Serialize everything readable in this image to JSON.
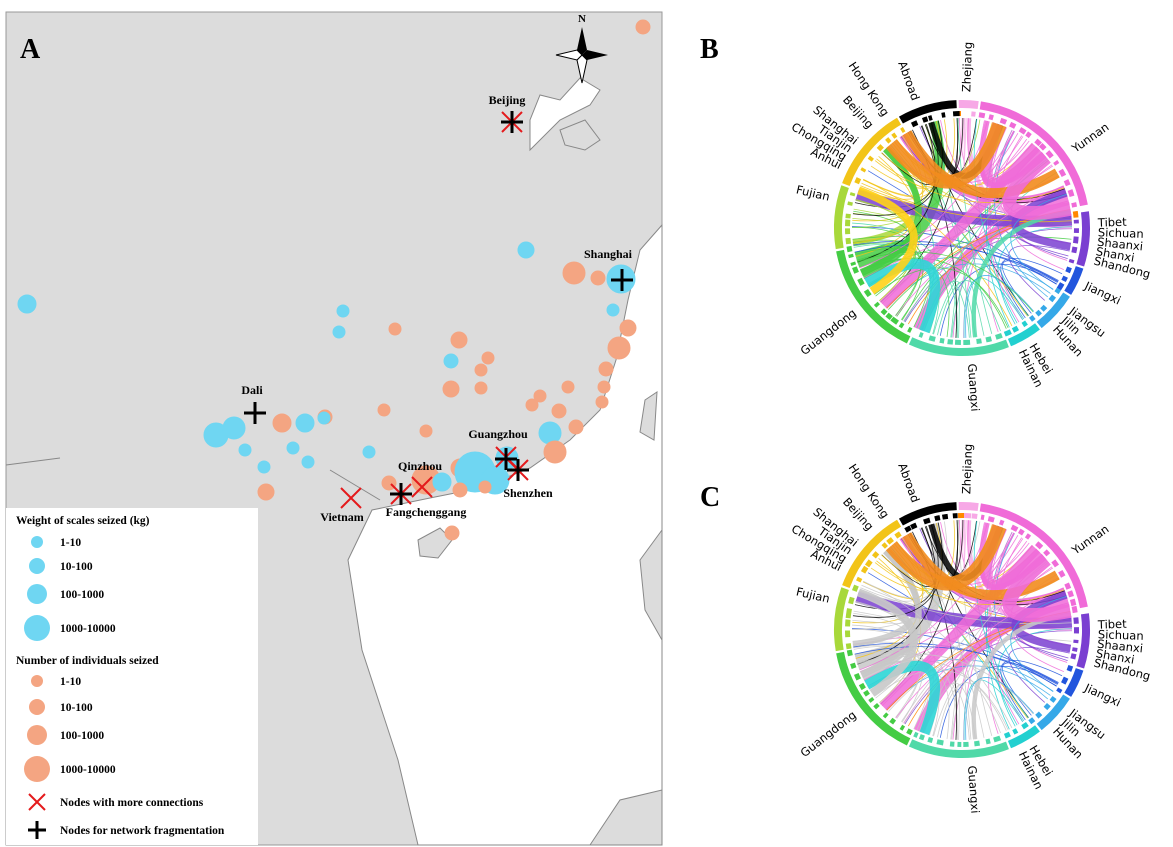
{
  "panels": {
    "a": "A",
    "b": "B",
    "c": "C"
  },
  "map": {
    "north": "N",
    "places": [
      "Beijing",
      "Shanghai",
      "Dali",
      "Guangzhou",
      "Qinzhou",
      "Shenzhen",
      "Vietnam",
      "Fangchenggang"
    ]
  },
  "legend": {
    "weight": {
      "title": "Weight of scales seized (kg)",
      "items": [
        "1-10",
        "10-100",
        "100-1000",
        "1000-10000"
      ]
    },
    "individuals": {
      "title": "Number of individuals seized",
      "items": [
        "1-10",
        "10-100",
        "100-1000",
        "1000-10000"
      ]
    },
    "markers": [
      "Nodes with more connections",
      "Nodes for network fragmentation"
    ]
  },
  "chord": {
    "labels": [
      "Zhejiang",
      "Yunnan",
      "Tibet",
      "Sichuan",
      "Shaanxi",
      "Shanxi",
      "Shandong",
      "Jiangxi",
      "Jiangsu",
      "Jilin",
      "Hunan",
      "Hebei",
      "Hainan",
      "Guangxi",
      "Guangdong",
      "Fujian",
      "Anhui",
      "Chongqing",
      "Tianjin",
      "Shanghai",
      "Beijing",
      "Hong Kong",
      "Abroad"
    ]
  }
}
